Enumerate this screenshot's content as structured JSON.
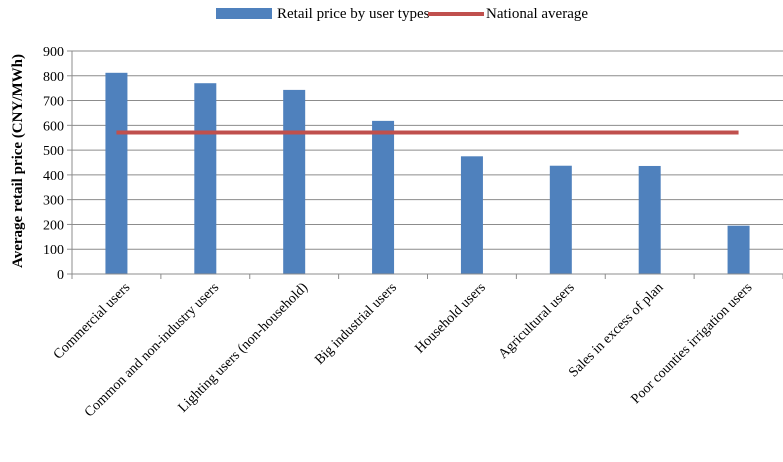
{
  "chart_data": {
    "type": "bar",
    "categories": [
      "Commercial users",
      "Common and non-industry users",
      "Lighting users (non-household)",
      "Big industrial users",
      "Household users",
      "Agricultural users",
      "Sales in excess of plan",
      "Poor counties irrigation users"
    ],
    "series": [
      {
        "name": "Retail price by user types",
        "type": "bar",
        "color": "#4f81bd",
        "values": [
          812,
          770,
          743,
          618,
          475,
          437,
          436,
          195
        ]
      },
      {
        "name": "National average",
        "type": "line",
        "color": "#c0504d",
        "values": [
          571,
          571,
          571,
          571,
          571,
          571,
          571,
          571
        ]
      }
    ],
    "ylabel": "Average retail price (CNY/MWh)",
    "xlabel": "",
    "ylim": [
      0,
      900
    ],
    "yticks": [
      0,
      100,
      200,
      300,
      400,
      500,
      600,
      700,
      800,
      900
    ],
    "grid": true,
    "legend_position": "top-center"
  }
}
